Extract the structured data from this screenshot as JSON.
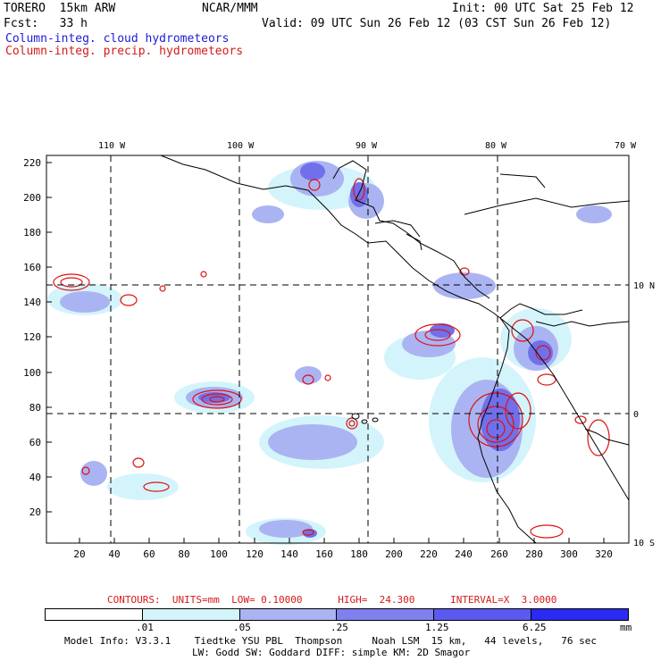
{
  "header": {
    "model": "TORERO  15km ARW",
    "org": "NCAR/MMM",
    "init": "Init: 00 UTC Sat 25 Feb 12",
    "fcst": "Fcst:   33 h",
    "valid": "Valid: 09 UTC Sun 26 Feb 12 (03 CST Sun 26 Feb 12)",
    "field1": "Column-integ. cloud hydrometeors",
    "field2": "Column-integ. precip. hydrometeors"
  },
  "colors": {
    "field1": "#1c1cd6",
    "field2": "#d41a1a",
    "cloud_shades": [
      "#ffffff",
      "#d4f4fb",
      "#aab4f2",
      "#8080ee",
      "#5a5aee",
      "#2a2af0"
    ],
    "precip_contour": "#e01010"
  },
  "map": {
    "top_lon_labels": [
      "110 W",
      "100 W",
      "90 W",
      "80 W",
      "70 W"
    ],
    "right_lat_labels": [
      "10 N",
      "0",
      "10 S"
    ],
    "left_ticks": [
      "220",
      "200",
      "180",
      "160",
      "140",
      "120",
      "100",
      "80",
      "60",
      "40",
      "20"
    ],
    "bottom_ticks": [
      "20",
      "40",
      "60",
      "80",
      "100",
      "120",
      "140",
      "160",
      "180",
      "200",
      "220",
      "240",
      "260",
      "280",
      "300",
      "320"
    ]
  },
  "contours": {
    "caption": "CONTOURS:  UNITS=mm  LOW= 0.10000      HIGH=  24.300      INTERVAL=X  3.0000"
  },
  "colorbar": {
    "labels": [
      ".01",
      ".05",
      ".25",
      "1.25",
      "6.25"
    ],
    "unit": "mm"
  },
  "footer": {
    "line1": "Model Info: V3.3.1    Tiedtke YSU PBL  Thompson     Noah LSM  15 km,   44 levels,   76 sec",
    "line2": "LW: Godd SW: Goddard DIFF: simple KM: 2D Smagor"
  }
}
